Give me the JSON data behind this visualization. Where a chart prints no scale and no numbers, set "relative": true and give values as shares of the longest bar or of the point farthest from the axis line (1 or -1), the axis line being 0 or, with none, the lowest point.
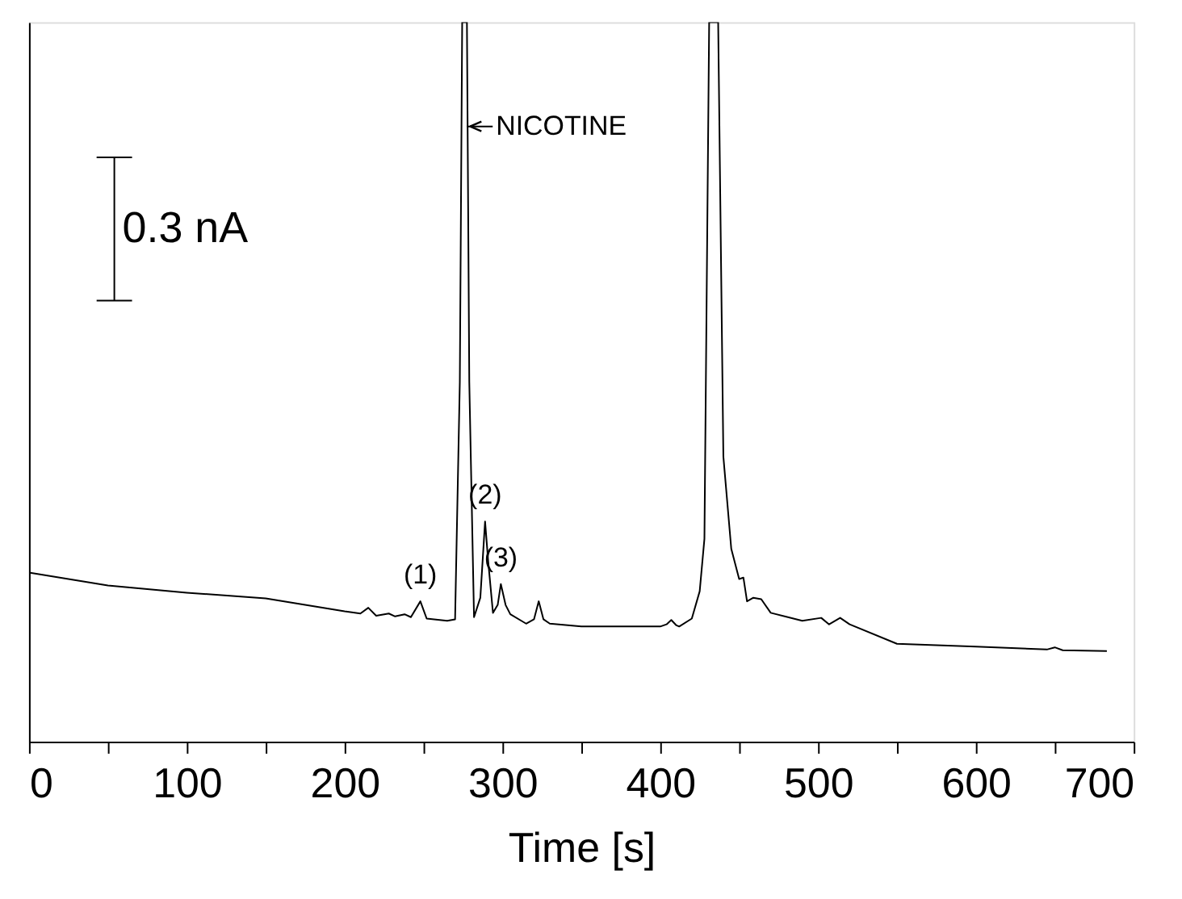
{
  "chart_data": {
    "type": "line",
    "relative": true,
    "xlabel": "Time [s]",
    "x": [
      0,
      50,
      100,
      150,
      200,
      210,
      215,
      220,
      228,
      232,
      238,
      242,
      248,
      252,
      265,
      270,
      273,
      274.5,
      277.5,
      279,
      282,
      286,
      289,
      291,
      294,
      297,
      299,
      302,
      305,
      315,
      320,
      323,
      326,
      330,
      350,
      400,
      404,
      407,
      410,
      412,
      420,
      425,
      428,
      431,
      436.7,
      440,
      445,
      450,
      452.7,
      455,
      459,
      464,
      470,
      490,
      502,
      507,
      514,
      520,
      550,
      600,
      645,
      650,
      655,
      683
    ],
    "series": [
      {
        "color": "#000000",
        "values": [
          0.235,
          0.217,
          0.207,
          0.199,
          0.181,
          0.178,
          0.186,
          0.175,
          0.178,
          0.174,
          0.177,
          0.173,
          0.195,
          0.171,
          0.168,
          0.17,
          0.5,
          1.0,
          1.0,
          0.5,
          0.173,
          0.2,
          0.306,
          0.25,
          0.179,
          0.19,
          0.219,
          0.19,
          0.177,
          0.164,
          0.17,
          0.195,
          0.17,
          0.164,
          0.16,
          0.16,
          0.163,
          0.169,
          0.162,
          0.16,
          0.171,
          0.209,
          0.282,
          1.0,
          1.0,
          0.396,
          0.268,
          0.226,
          0.228,
          0.195,
          0.2,
          0.198,
          0.179,
          0.168,
          0.172,
          0.163,
          0.172,
          0.163,
          0.136,
          0.132,
          0.128,
          0.131,
          0.127,
          0.126
        ]
      }
    ],
    "xlim": [
      0,
      700
    ],
    "xticks": [
      0,
      {
        "value": 50,
        "label": null
      },
      100,
      {
        "value": 150,
        "label": null
      },
      200,
      {
        "value": 250,
        "label": null
      },
      300,
      {
        "value": 350,
        "label": null
      },
      400,
      {
        "value": 450,
        "label": null
      },
      500,
      {
        "value": 550,
        "label": null
      },
      600,
      {
        "value": 650,
        "label": null
      },
      700
    ],
    "tick_labels": "x",
    "grid": false,
    "marker": "none",
    "line_style": "solid",
    "annotations": [
      {
        "text": "NICOTINE",
        "x": 277.5,
        "y": 0.855
      },
      {
        "text": "(1)",
        "x": 248,
        "y": 0.195
      },
      {
        "text": "(2)",
        "x": 289,
        "y": 0.306
      },
      {
        "text": "(3)",
        "x": 299,
        "y": 0.219
      },
      "0.3 nA"
    ]
  }
}
